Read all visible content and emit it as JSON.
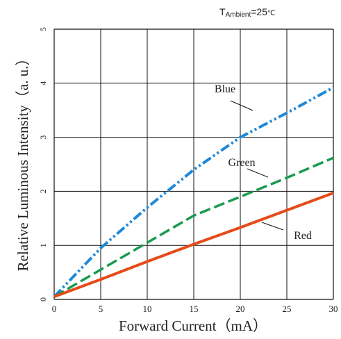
{
  "chart_data": {
    "type": "line",
    "annotation": {
      "t_prefix": "T",
      "t_subscript": "Ambient",
      "t_value": "=25",
      "t_unit": "℃"
    },
    "xlabel": "Forward  Current（mA）",
    "ylabel": "Relative Luminous Intensity（a. u.）",
    "xlim": [
      0,
      30
    ],
    "ylim": [
      0,
      5
    ],
    "xticks": [
      0,
      5,
      10,
      15,
      20,
      25,
      30
    ],
    "yticks": [
      0,
      1,
      2,
      3,
      4,
      5
    ],
    "grid": true,
    "series": [
      {
        "name": "Blue",
        "color": "#1E88D8",
        "dash": "dash-dot-dot",
        "x": [
          0,
          5,
          10,
          15,
          20,
          25,
          30
        ],
        "y": [
          0.05,
          0.95,
          1.7,
          2.4,
          3.0,
          3.45,
          3.92
        ]
      },
      {
        "name": "Green",
        "color": "#1A9A4E",
        "dash": "dash",
        "x": [
          0,
          5,
          10,
          15,
          20,
          25,
          30
        ],
        "y": [
          0.05,
          0.55,
          1.05,
          1.55,
          1.9,
          2.25,
          2.62
        ]
      },
      {
        "name": "Red",
        "color": "#E64A19",
        "dash": "solid",
        "x": [
          0,
          5,
          10,
          15,
          20,
          25,
          30
        ],
        "y": [
          0.05,
          0.37,
          0.7,
          1.02,
          1.33,
          1.65,
          1.97
        ]
      }
    ]
  }
}
